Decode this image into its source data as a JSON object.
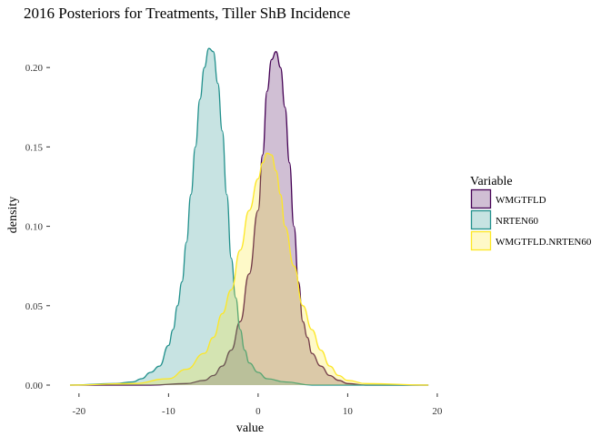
{
  "chart_data": {
    "type": "area",
    "title": "2016 Posteriors for Treatments, Tiller ShB Incidence",
    "xlabel": "value",
    "ylabel": "density",
    "xlim": [
      -21,
      19.5
    ],
    "ylim": [
      0,
      0.215
    ],
    "x_ticks": [
      -20,
      -10,
      0,
      10,
      20
    ],
    "x_tick_labels": [
      "-20",
      "-10",
      "0",
      "10",
      "20"
    ],
    "y_ticks": [
      0,
      0.05,
      0.1,
      0.15,
      0.2
    ],
    "y_tick_labels": [
      "0.00",
      "0.05",
      "0.10",
      "0.15",
      "0.20"
    ],
    "grid": false,
    "legend": {
      "title": "Variable",
      "position": "right"
    },
    "series": [
      {
        "name": "WMGTFLD",
        "color": "#440154",
        "fill": "rgba(68,1,84,0.25)",
        "x": [
          -21,
          -12,
          -8,
          -6,
          -5,
          -4,
          -3,
          -2,
          -1,
          0,
          0.5,
          1,
          1.5,
          2,
          2.5,
          3,
          3.5,
          4,
          4.5,
          5,
          5.5,
          6,
          7,
          8,
          9,
          10,
          12,
          19
        ],
        "y": [
          0.0,
          0.0,
          0.001,
          0.003,
          0.006,
          0.012,
          0.022,
          0.04,
          0.07,
          0.11,
          0.145,
          0.185,
          0.205,
          0.21,
          0.2,
          0.175,
          0.14,
          0.1,
          0.065,
          0.04,
          0.03,
          0.02,
          0.012,
          0.006,
          0.003,
          0.001,
          0.0,
          0.0
        ]
      },
      {
        "name": "NRTEN60",
        "color": "#21908C",
        "fill": "rgba(33,144,140,0.25)",
        "x": [
          -21,
          -16,
          -14,
          -13,
          -12,
          -11,
          -10,
          -9.5,
          -9,
          -8.5,
          -8,
          -7.5,
          -7,
          -6.5,
          -6,
          -5.5,
          -5,
          -4.5,
          -4,
          -3.5,
          -3,
          -2.5,
          -2,
          -1.5,
          -1,
          0,
          1,
          3,
          6,
          19
        ],
        "y": [
          0.0,
          0.001,
          0.002,
          0.004,
          0.008,
          0.012,
          0.025,
          0.035,
          0.05,
          0.065,
          0.09,
          0.12,
          0.15,
          0.18,
          0.2,
          0.212,
          0.21,
          0.19,
          0.16,
          0.12,
          0.08,
          0.055,
          0.035,
          0.022,
          0.014,
          0.008,
          0.004,
          0.002,
          0.0,
          0.0
        ]
      },
      {
        "name": "WMGTFLD.NRTEN60",
        "color": "#FDE725",
        "fill": "rgba(253,231,37,0.25)",
        "x": [
          -21,
          -14,
          -10,
          -8,
          -6,
          -5,
          -4,
          -3,
          -2,
          -1,
          0,
          0.5,
          1,
          1.5,
          2,
          2.5,
          3,
          4,
          5,
          6,
          7,
          8,
          9,
          10,
          12,
          19
        ],
        "y": [
          0.0,
          0.001,
          0.004,
          0.01,
          0.02,
          0.03,
          0.045,
          0.06,
          0.085,
          0.11,
          0.13,
          0.14,
          0.146,
          0.145,
          0.135,
          0.12,
          0.1,
          0.075,
          0.05,
          0.035,
          0.022,
          0.012,
          0.006,
          0.003,
          0.001,
          0.0
        ]
      }
    ]
  }
}
